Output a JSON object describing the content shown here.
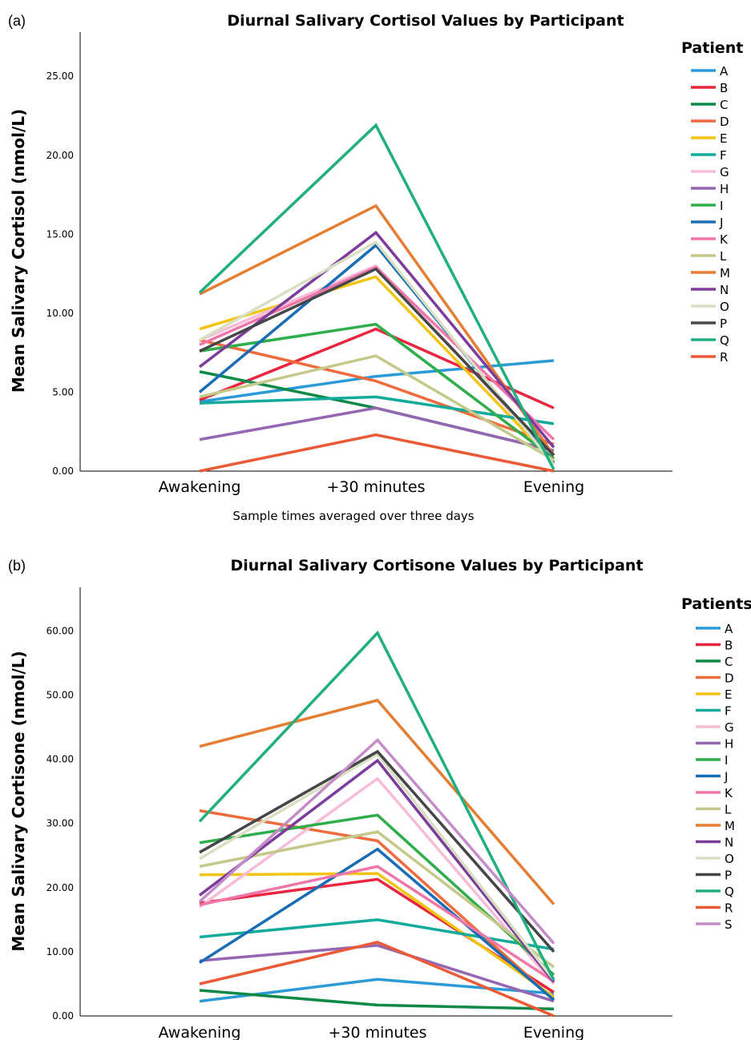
{
  "chart_data": [
    {
      "panel_label": "(a)",
      "type": "line",
      "title": "Diurnal Salivary Cortisol Values by Participant",
      "xlabel": "Sample times averaged over three days",
      "ylabel": "Mean Salivary Cortisol (nmol/L)",
      "categories": [
        "Awakening",
        "+30 minutes",
        "Evening"
      ],
      "ylim": [
        0,
        27.8
      ],
      "yticks": [
        "0.00",
        "5.00",
        "10.00",
        "15.00",
        "20.00",
        "25.00"
      ],
      "grid": false,
      "legend_title": "Patient",
      "legend_position": "right",
      "series": [
        {
          "name": "A",
          "color": "#2b9bd8",
          "values": [
            4.4,
            6.0,
            7.0
          ]
        },
        {
          "name": "B",
          "color": "#e8263f",
          "values": [
            4.5,
            9.0,
            4.0
          ]
        },
        {
          "name": "C",
          "color": "#0d8a45",
          "values": [
            6.3,
            4.0,
            1.3
          ]
        },
        {
          "name": "D",
          "color": "#ef6a3c",
          "values": [
            8.3,
            5.7,
            1.7
          ]
        },
        {
          "name": "E",
          "color": "#f2c413",
          "values": [
            9.0,
            12.3,
            0.6
          ]
        },
        {
          "name": "F",
          "color": "#12ab9b",
          "values": [
            4.3,
            4.7,
            3.0
          ]
        },
        {
          "name": "G",
          "color": "#f6bcd8",
          "values": [
            8.3,
            13.0,
            0.8
          ]
        },
        {
          "name": "H",
          "color": "#9566b2",
          "values": [
            2.0,
            4.0,
            1.3
          ]
        },
        {
          "name": "I",
          "color": "#2fae4c",
          "values": [
            7.6,
            9.3,
            0.8
          ]
        },
        {
          "name": "J",
          "color": "#1a6db5",
          "values": [
            5.0,
            14.3,
            0.5
          ]
        },
        {
          "name": "K",
          "color": "#ef76a8",
          "values": [
            8.0,
            12.9,
            2.0
          ]
        },
        {
          "name": "L",
          "color": "#c4c98a",
          "values": [
            4.7,
            7.3,
            0.7
          ]
        },
        {
          "name": "M",
          "color": "#e37e33",
          "values": [
            11.2,
            16.8,
            1.0
          ]
        },
        {
          "name": "N",
          "color": "#7d3b9b",
          "values": [
            6.6,
            15.1,
            1.5
          ]
        },
        {
          "name": "O",
          "color": "#d9dfc2",
          "values": [
            8.3,
            14.5,
            0.4
          ]
        },
        {
          "name": "P",
          "color": "#444648",
          "values": [
            7.6,
            12.8,
            1.0
          ]
        },
        {
          "name": "Q",
          "color": "#20b07d",
          "values": [
            11.3,
            21.9,
            0.1
          ]
        },
        {
          "name": "R",
          "color": "#eb5a36",
          "values": [
            0.0,
            2.3,
            0.0
          ]
        }
      ]
    },
    {
      "panel_label": "(b)",
      "type": "line",
      "title": "Diurnal Salivary Cortisone Values by Participant",
      "xlabel": "",
      "ylabel": "Mean Salivary Cortisone (nmol/L)",
      "categories": [
        "Awakening",
        "+30 minutes",
        "Evening"
      ],
      "ylim": [
        0,
        66.8
      ],
      "yticks": [
        "0.00",
        "10.00",
        "20.00",
        "30.00",
        "40.00",
        "50.00",
        "60.00"
      ],
      "grid": false,
      "legend_title": "Patients",
      "legend_position": "right",
      "series": [
        {
          "name": "A",
          "color": "#2b9bd8",
          "values": [
            2.3,
            5.7,
            3.5
          ]
        },
        {
          "name": "B",
          "color": "#e8263f",
          "values": [
            17.6,
            21.3,
            3.7
          ]
        },
        {
          "name": "C",
          "color": "#0d8a45",
          "values": [
            4.0,
            1.7,
            1.1
          ]
        },
        {
          "name": "D",
          "color": "#ef6a3c",
          "values": [
            32.0,
            27.3,
            2.6
          ]
        },
        {
          "name": "E",
          "color": "#f2c413",
          "values": [
            22.0,
            22.2,
            3.0
          ]
        },
        {
          "name": "F",
          "color": "#12ab9b",
          "values": [
            12.3,
            15.0,
            10.4
          ]
        },
        {
          "name": "G",
          "color": "#f6bcd8",
          "values": [
            17.0,
            37.0,
            5.0
          ]
        },
        {
          "name": "H",
          "color": "#9566b2",
          "values": [
            8.6,
            11.0,
            2.3
          ]
        },
        {
          "name": "I",
          "color": "#2fae4c",
          "values": [
            27.0,
            31.3,
            6.4
          ]
        },
        {
          "name": "J",
          "color": "#1a6db5",
          "values": [
            8.3,
            26.0,
            2.5
          ]
        },
        {
          "name": "K",
          "color": "#ef76a8",
          "values": [
            17.3,
            23.3,
            5.4
          ]
        },
        {
          "name": "L",
          "color": "#c4c98a",
          "values": [
            23.3,
            28.7,
            7.6
          ]
        },
        {
          "name": "M",
          "color": "#e37e33",
          "values": [
            42.0,
            49.2,
            17.4
          ]
        },
        {
          "name": "N",
          "color": "#7d3b9b",
          "values": [
            18.8,
            39.8,
            5.3
          ]
        },
        {
          "name": "O",
          "color": "#d9dfc2",
          "values": [
            24.5,
            40.8,
            5.6
          ]
        },
        {
          "name": "P",
          "color": "#444648",
          "values": [
            25.5,
            41.2,
            10.0
          ]
        },
        {
          "name": "Q",
          "color": "#20b07d",
          "values": [
            30.3,
            59.7,
            5.6
          ]
        },
        {
          "name": "R",
          "color": "#eb5a36",
          "values": [
            5.0,
            11.5,
            0.0
          ]
        },
        {
          "name": "S",
          "color": "#c48dc9",
          "values": [
            17.8,
            43.0,
            11.3
          ]
        }
      ]
    }
  ]
}
